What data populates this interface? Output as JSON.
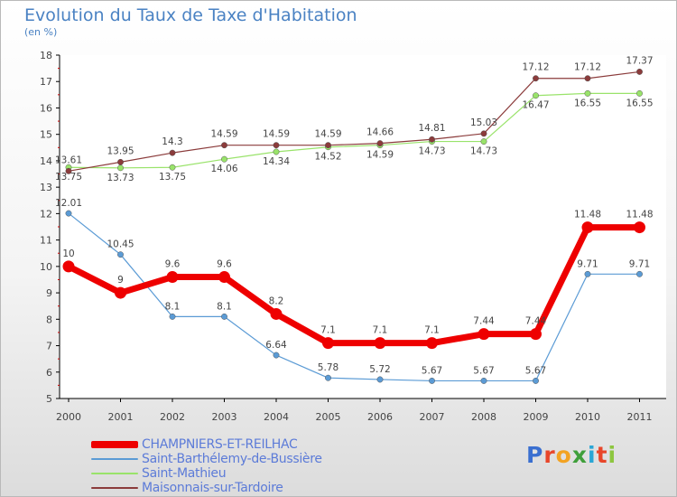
{
  "title": "Evolution du Taux de Taxe d'Habitation",
  "unit": "(en %)",
  "brand": "Proxiti",
  "colors": {
    "plot_background": "#ffffff",
    "axis": "#000000",
    "label_text": "#444444",
    "legend_text": "#5c7bd8",
    "title": "#4a82c3"
  },
  "chart_data": {
    "type": "line",
    "categories": [
      "2000",
      "2001",
      "2002",
      "2003",
      "2004",
      "2005",
      "2006",
      "2007",
      "2008",
      "2009",
      "2010",
      "2011"
    ],
    "ylim": [
      5,
      18
    ],
    "yticks": [
      5,
      6,
      7,
      8,
      9,
      10,
      11,
      12,
      13,
      14,
      15,
      16,
      17,
      18
    ],
    "grid": false,
    "legend_position": "bottom",
    "series": [
      {
        "name": "CHAMPNIERS-ET-REILHAC",
        "color": "#ee0000",
        "values": [
          10,
          9,
          9.6,
          9.6,
          8.2,
          7.1,
          7.1,
          7.1,
          7.44,
          7.44,
          11.48,
          11.48
        ],
        "labels": [
          "10",
          "9",
          "9.6",
          "9.6",
          "8.2",
          "7.1",
          "7.1",
          "7.1",
          "7.44",
          "7.44",
          "11.48",
          "11.48"
        ]
      },
      {
        "name": "Saint-Barthélemy-de-Bussière",
        "color": "#5b9bd5",
        "values": [
          12.01,
          10.45,
          8.1,
          8.1,
          6.64,
          5.78,
          5.72,
          5.67,
          5.67,
          5.67,
          9.71,
          9.71
        ],
        "labels": [
          "12.01",
          "10.45",
          "8.1",
          "8.1",
          "6.64",
          "5.78",
          "5.72",
          "5.67",
          "5.67",
          "5.67",
          "9.71",
          "9.71"
        ]
      },
      {
        "name": "Saint-Mathieu",
        "color": "#99e36a",
        "values": [
          13.75,
          13.73,
          13.75,
          14.06,
          14.34,
          14.52,
          14.59,
          14.73,
          14.73,
          16.47,
          16.55,
          16.55
        ],
        "labels": [
          "13.75",
          "13.73",
          "13.75",
          "14.06",
          "14.34",
          "14.52",
          "14.59",
          "14.73",
          "14.73",
          "16.47",
          "16.55",
          "16.55"
        ]
      },
      {
        "name": "Maisonnais-sur-Tardoire",
        "color": "#8b3b3b",
        "values": [
          13.61,
          13.95,
          14.3,
          14.59,
          14.59,
          14.59,
          14.66,
          14.81,
          15.03,
          17.12,
          17.12,
          17.37
        ],
        "labels": [
          "13.61",
          "13.95",
          "14.3",
          "14.59",
          "14.59",
          "14.59",
          "14.66",
          "14.81",
          "15.03",
          "17.12",
          "17.12",
          "17.37"
        ]
      }
    ]
  }
}
